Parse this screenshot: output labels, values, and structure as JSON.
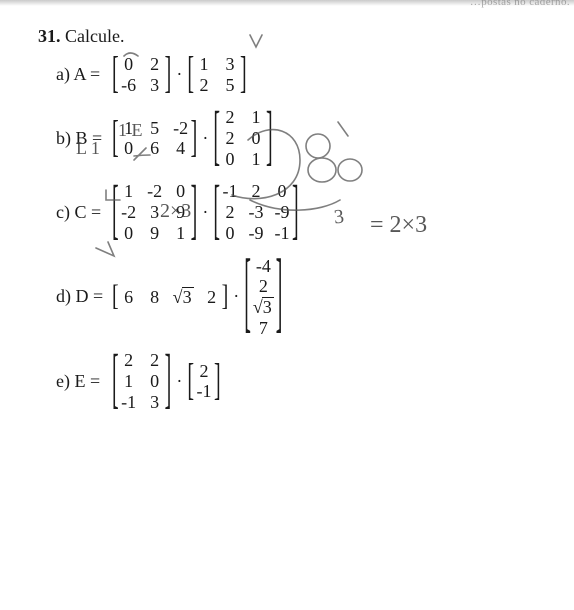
{
  "page": {
    "number": "31.",
    "verb": "Calcule."
  },
  "items": {
    "a": {
      "label": "a) A =",
      "m1": {
        "rows": 2,
        "cols": 2,
        "cells": [
          "0",
          "2",
          "-6",
          "3"
        ]
      },
      "m2": {
        "rows": 2,
        "cols": 2,
        "cells": [
          "1",
          "3",
          "2",
          "5"
        ]
      },
      "op": "·"
    },
    "b": {
      "label": "b) B =",
      "m1": {
        "rows": 2,
        "cols": 3,
        "cells": [
          "1",
          "5",
          "-2",
          "0",
          "6",
          "4"
        ]
      },
      "m2": {
        "rows": 3,
        "cols": 2,
        "cells": [
          "2",
          "1",
          "2",
          "0",
          "0",
          "1"
        ]
      },
      "op": "·"
    },
    "c": {
      "label": "c) C =",
      "m1": {
        "rows": 3,
        "cols": 3,
        "cells": [
          "1",
          "-2",
          "0",
          "-2",
          "3",
          "9",
          "0",
          "9",
          "1"
        ]
      },
      "m2": {
        "rows": 3,
        "cols": 3,
        "cells": [
          "-1",
          "2",
          "0",
          "2",
          "-3",
          "-9",
          "0",
          "-9",
          "-1"
        ]
      },
      "op": "·"
    },
    "d": {
      "label": "d) D =",
      "m1": {
        "rows": 1,
        "cols": 4,
        "cells": [
          "6",
          "8",
          "√3",
          "2"
        ]
      },
      "m2": {
        "rows": 4,
        "cols": 1,
        "cells": [
          "-4",
          "2",
          "√3",
          "7"
        ]
      },
      "op": "·"
    },
    "e": {
      "label": "e) E =",
      "m1": {
        "rows": 3,
        "cols": 2,
        "cells": [
          "2",
          "2",
          "1",
          "0",
          "-1",
          "3"
        ]
      },
      "m2": {
        "rows": 2,
        "cols": 1,
        "cells": [
          "2",
          "-1"
        ]
      },
      "op": "·"
    }
  },
  "handwriting": {
    "annot_2x3_a": "2×3",
    "annot_eq_2x3": "= 2×3",
    "annot_1e": "1  E",
    "annot_L1": "L 1",
    "annot_Lbrace": "L",
    "annot_3": "3",
    "strike_neg": "-",
    "arrow_glyph": "↘"
  },
  "style": {
    "text_color": "#1a1a1a",
    "hand_color": "#3a3a3a",
    "bg": "#ffffff",
    "font_body_pt": 18,
    "font_hand_pt": 22,
    "bracket_weight": 1.6
  }
}
